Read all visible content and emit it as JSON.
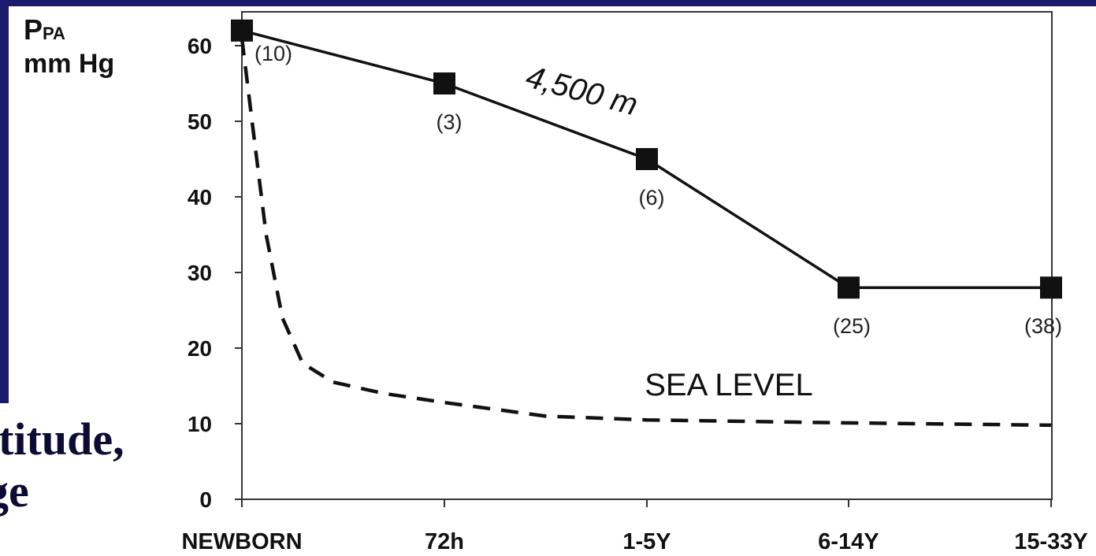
{
  "chart_data": {
    "type": "line",
    "ylabel_main": "P",
    "ylabel_sub": "PA",
    "ylabel_unit": "mm Hg",
    "categories": [
      "NEWBORN",
      "72h",
      "1-5Y",
      "6-14Y",
      "15-33Y"
    ],
    "ylim": [
      0,
      65
    ],
    "yticks": [
      0,
      10,
      20,
      30,
      40,
      50,
      60
    ],
    "series": [
      {
        "name": "4,500 m",
        "style": "solid",
        "marker": "square",
        "values": [
          62,
          55,
          45,
          28,
          28
        ],
        "counts": [
          "(10)",
          "(3)",
          "(6)",
          "(25)",
          "(38)"
        ]
      },
      {
        "name": "SEA LEVEL",
        "style": "dashed",
        "marker": "none",
        "x": [
          0,
          0.05,
          0.12,
          0.2,
          0.3,
          0.45,
          0.7,
          1,
          1.5,
          2,
          3,
          4
        ],
        "values": [
          61,
          50,
          35,
          24,
          18,
          15.5,
          14,
          12.8,
          11,
          10.5,
          10.1,
          9.8
        ]
      }
    ],
    "colors": {
      "line": "#111111",
      "axis": "#333333"
    }
  },
  "slide": {
    "text_lines": [
      "ltitude,",
      "ge"
    ]
  }
}
